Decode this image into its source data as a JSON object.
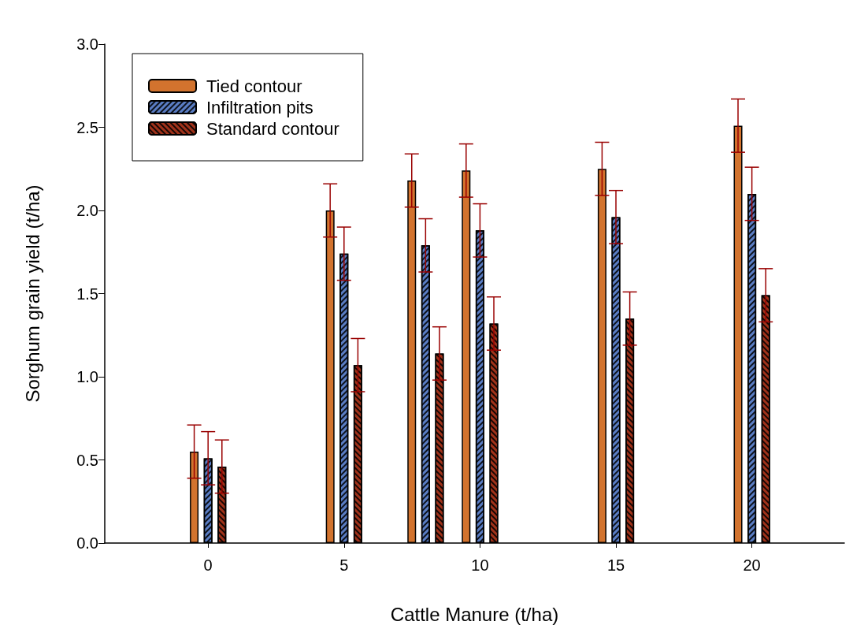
{
  "chart_data": {
    "type": "bar",
    "xlabel": "Cattle Manure (t/ha)",
    "ylabel": "Sorghum grain yield (t/ha)",
    "x": [
      0,
      5,
      8,
      10,
      15,
      20
    ],
    "xlim": [
      -3.8,
      23.4
    ],
    "xticks": [
      0,
      5,
      10,
      15,
      20
    ],
    "ylim": [
      0,
      3
    ],
    "yticks": [
      {
        "value": 0,
        "label": "0.0"
      },
      0.5,
      {
        "value": 1,
        "label": "1.0"
      },
      1.5,
      {
        "value": 2,
        "label": "2.0"
      },
      2.5,
      {
        "value": 3,
        "label": "3.0"
      }
    ],
    "legend": "top left",
    "grid": false,
    "series": [
      {
        "name": "Tied contour",
        "color": "#d2732e",
        "values": [
          0.55,
          2.0,
          2.18,
          2.24,
          2.25,
          2.51
        ],
        "errors": [
          0.16,
          0.16,
          0.16,
          0.16,
          0.16,
          0.16
        ]
      },
      {
        "name": "Infiltration pits",
        "color": "#5a7dc4",
        "values": [
          0.51,
          1.74,
          1.79,
          1.88,
          1.96,
          2.1
        ],
        "errors": [
          0.16,
          0.16,
          0.16,
          0.16,
          0.16,
          0.16
        ]
      },
      {
        "name": "Standard contour",
        "color": "#a0321a",
        "values": [
          0.46,
          1.07,
          1.14,
          1.32,
          1.35,
          1.49
        ],
        "errors": [
          0.16,
          0.16,
          0.16,
          0.16,
          0.16,
          0.16
        ]
      }
    ]
  }
}
